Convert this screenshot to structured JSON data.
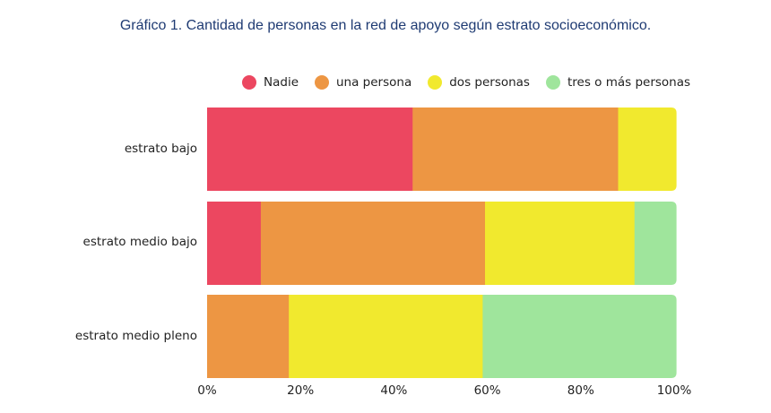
{
  "title": "Gráfico 1. Cantidad de personas en la red de apoyo según estrato socioeconómico.",
  "legend": [
    {
      "label": "Nadie",
      "color": "#ec4760"
    },
    {
      "label": "una persona",
      "color": "#ed9643"
    },
    {
      "label": "dos personas",
      "color": "#f1e92e"
    },
    {
      "label": "tres o más personas",
      "color": "#9fe59c"
    }
  ],
  "chart_data": {
    "type": "bar",
    "orientation": "horizontal",
    "stacked": true,
    "title": "Gráfico 1. Cantidad de personas en la red de apoyo según estrato socioeconómico.",
    "categories": [
      "estrato bajo",
      "estrato medio bajo",
      "estrato medio pleno"
    ],
    "series": [
      {
        "name": "Nadie",
        "color": "#ec4760",
        "values": [
          44,
          11.5,
          0
        ]
      },
      {
        "name": "una persona",
        "color": "#ed9643",
        "values": [
          44,
          48,
          17.5
        ]
      },
      {
        "name": "dos personas",
        "color": "#f1e92e",
        "values": [
          12.5,
          32,
          41.5
        ]
      },
      {
        "name": "tres o más personas",
        "color": "#9fe59c",
        "values": [
          0,
          9,
          41.5
        ]
      }
    ],
    "xlim": [
      0,
      100
    ],
    "x_ticks": [
      "0%",
      "20%",
      "40%",
      "60%",
      "80%",
      "100%"
    ],
    "xlabel": "",
    "ylabel": "",
    "legend_position": "top",
    "grid": false
  }
}
